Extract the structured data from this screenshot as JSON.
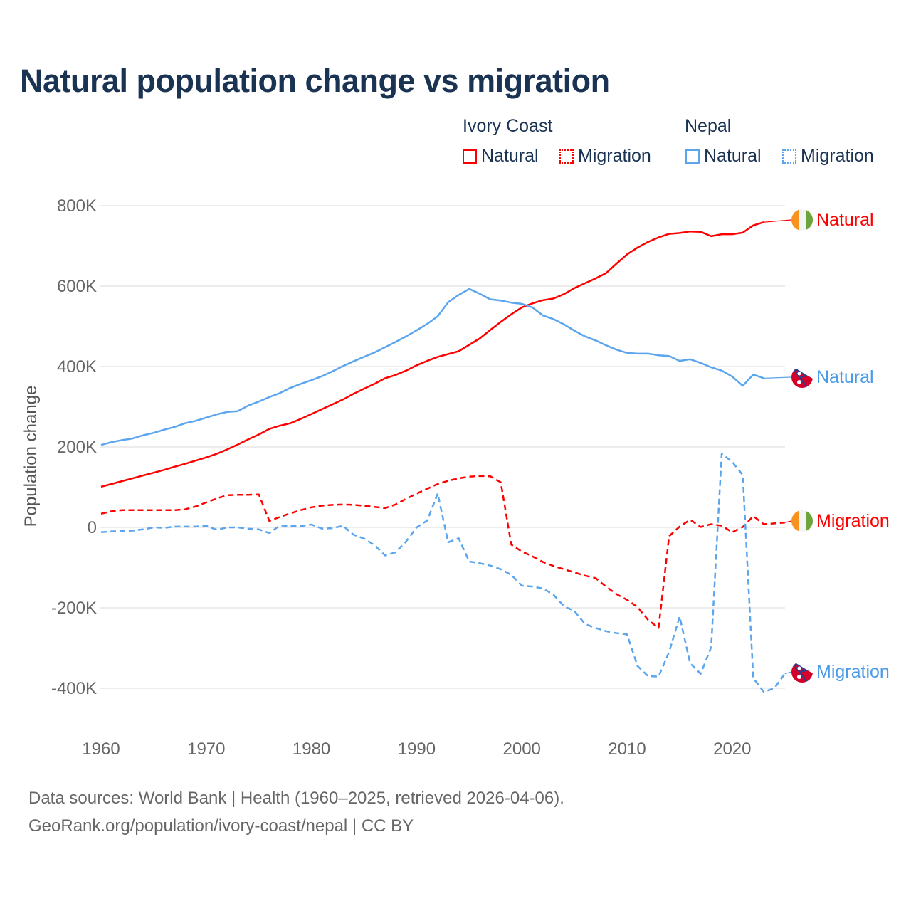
{
  "title": "Natural population change vs migration",
  "legend": {
    "groups": [
      {
        "label": "Ivory Coast",
        "color": "#ff0000",
        "items": [
          "Natural",
          "Migration"
        ]
      },
      {
        "label": "Nepal",
        "color": "#5aa5ee",
        "items": [
          "Natural",
          "Migration"
        ]
      }
    ]
  },
  "footer": {
    "line1": "Data sources: World Bank | Health (1960–2025, retrieved 2026-04-06).",
    "line2": "GeoRank.org/population/ivory-coast/nepal | CC BY"
  },
  "chart_data": {
    "type": "line",
    "title": "Natural population change vs migration",
    "xlabel": "",
    "ylabel": "Population change",
    "xlim": [
      1960,
      2025
    ],
    "ylim": [
      -400000,
      800000
    ],
    "x_ticks": [
      "1960",
      "1970",
      "1980",
      "1990",
      "2000",
      "2010",
      "2020"
    ],
    "y_ticks": [
      {
        "value": 800000,
        "label": "800K"
      },
      {
        "value": 600000,
        "label": "600K"
      },
      {
        "value": 400000,
        "label": "400K"
      },
      {
        "value": 200000,
        "label": "200K"
      },
      {
        "value": 0,
        "label": "0"
      },
      {
        "value": -200000,
        "label": "-200K"
      },
      {
        "value": -400000,
        "label": "-400K"
      }
    ],
    "grid": true,
    "start_year": 1960,
    "units": "thousands",
    "series": [
      {
        "name": "Ivory Coast Natural",
        "end_label": "Natural",
        "country": "Ivory Coast",
        "color": "#ff0000",
        "dash": false,
        "values": [
          101,
          108,
          115,
          122,
          129,
          136,
          143,
          151,
          158,
          166,
          174,
          183,
          194,
          206,
          219,
          231,
          245,
          253,
          259,
          270,
          282,
          294,
          306,
          318,
          332,
          345,
          357,
          371,
          379,
          390,
          403,
          414,
          424,
          431,
          438,
          454,
          470,
          491,
          511,
          530,
          547,
          557,
          565,
          569,
          580,
          595,
          607,
          619,
          632,
          656,
          679,
          696,
          710,
          721,
          730,
          732,
          736,
          735,
          724,
          729,
          729,
          733,
          751,
          759
        ]
      },
      {
        "name": "Ivory Coast Migration",
        "end_label": "Migration",
        "country": "Ivory Coast",
        "color": "#ff0000",
        "dash": true,
        "values": [
          34,
          40,
          43,
          43,
          43,
          43,
          43,
          43,
          45,
          52,
          62,
          72,
          80,
          81,
          81,
          82,
          16,
          26,
          35,
          43,
          50,
          54,
          56,
          57,
          56,
          54,
          51,
          48,
          57,
          71,
          84,
          96,
          108,
          116,
          122,
          126,
          128,
          127,
          112,
          -43,
          -60,
          -72,
          -86,
          -96,
          -104,
          -112,
          -120,
          -126,
          -147,
          -166,
          -180,
          -198,
          -230,
          -250,
          -22,
          2,
          19,
          1,
          8,
          4,
          -12,
          1,
          28,
          8,
          10,
          12
        ]
      },
      {
        "name": "Nepal Natural",
        "end_label": "Natural",
        "country": "Nepal",
        "color": "#5aa5ee",
        "dash": false,
        "values": [
          205,
          212,
          217,
          221,
          229,
          235,
          243,
          250,
          259,
          265,
          273,
          281,
          287,
          289,
          303,
          313,
          324,
          334,
          347,
          357,
          366,
          376,
          388,
          401,
          413,
          424,
          435,
          448,
          461,
          475,
          490,
          506,
          525,
          560,
          578,
          593,
          581,
          567,
          564,
          559,
          556,
          547,
          527,
          518,
          505,
          489,
          475,
          465,
          453,
          442,
          434,
          432,
          432,
          428,
          426,
          414,
          418,
          409,
          398,
          390,
          375,
          352,
          380,
          371
        ]
      },
      {
        "name": "Nepal Migration",
        "end_label": "Migration",
        "country": "Nepal",
        "color": "#5aa5ee",
        "dash": true,
        "values": [
          -12,
          -10,
          -9,
          -8,
          -5,
          0,
          -1,
          2,
          2,
          2,
          4,
          -6,
          0,
          0,
          -3,
          -5,
          -14,
          5,
          3,
          3,
          7,
          -3,
          -2,
          4,
          -18,
          -28,
          -44,
          -70,
          -62,
          -35,
          0,
          17,
          84,
          -37,
          -27,
          -85,
          -89,
          -95,
          -104,
          -118,
          -145,
          -147,
          -152,
          -167,
          -196,
          -208,
          -240,
          -250,
          -258,
          -263,
          -266,
          -345,
          -370,
          -371,
          -310,
          -222,
          -338,
          -364,
          -298,
          183,
          163,
          130,
          -375,
          -409,
          -400,
          -364
        ]
      }
    ]
  }
}
